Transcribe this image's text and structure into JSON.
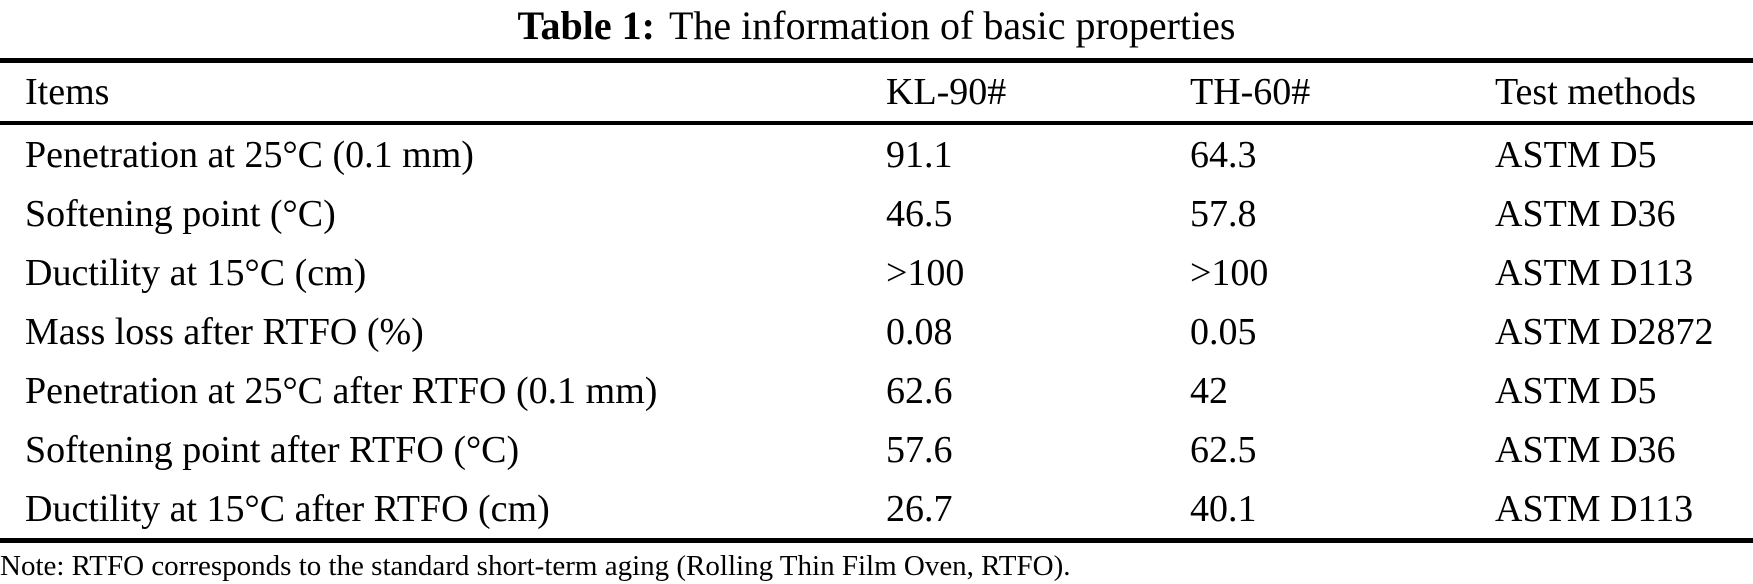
{
  "title": {
    "label": "Table 1:",
    "text": "The information of basic properties"
  },
  "table": {
    "columns": [
      "Items",
      "KL-90#",
      "TH-60#",
      "Test methods"
    ],
    "rows": [
      {
        "item": "Penetration at 25°C (0.1 mm)",
        "kl90": "91.1",
        "th60": "64.3",
        "method": "ASTM D5"
      },
      {
        "item": "Softening point (°C)",
        "kl90": "46.5",
        "th60": "57.8",
        "method": "ASTM D36"
      },
      {
        "item": "Ductility at 15°C (cm)",
        "kl90": ">100",
        "th60": ">100",
        "method": "ASTM D113"
      },
      {
        "item": "Mass loss after RTFO (%)",
        "kl90": "0.08",
        "th60": "0.05",
        "method": "ASTM D2872"
      },
      {
        "item": "Penetration at 25°C after RTFO (0.1 mm)",
        "kl90": "62.6",
        "th60": "42",
        "method": "ASTM D5"
      },
      {
        "item": "Softening point after RTFO (°C)",
        "kl90": "57.6",
        "th60": "62.5",
        "method": "ASTM D36"
      },
      {
        "item": "Ductility at 15°C after RTFO (cm)",
        "kl90": "26.7",
        "th60": "40.1",
        "method": "ASTM D113"
      }
    ]
  },
  "note": "Note: RTFO corresponds to the standard short-term aging (Rolling Thin Film Oven, RTFO)."
}
